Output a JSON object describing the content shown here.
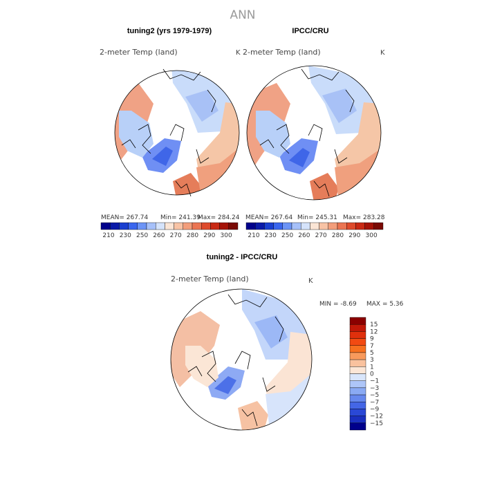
{
  "page": {
    "super_title": "ANN"
  },
  "chart_data": [
    {
      "type": "heatmap",
      "projection": "north-polar-stereographic",
      "title": "tuning2 (yrs 1979-1979)",
      "variable": "2-meter Temp (land)",
      "units": "K",
      "stats": {
        "mean": "MEAN=  267.74",
        "min": "Min=  241.39",
        "max": "Max=  284.24"
      },
      "colorbar": {
        "orientation": "horizontal",
        "levels": [
          "210",
          "230",
          "250",
          "260",
          "270",
          "280",
          "290",
          "300"
        ],
        "colors": [
          "#00008b",
          "#0a1aa8",
          "#1a3fd0",
          "#3a66ee",
          "#6c94f6",
          "#a6c0f9",
          "#d5e3fb",
          "#fbe5d5",
          "#f8c3a5",
          "#f39e7b",
          "#eb7552",
          "#de4b2c",
          "#c92a14",
          "#a51307",
          "#7a0a04"
        ]
      }
    },
    {
      "type": "heatmap",
      "projection": "north-polar-stereographic",
      "title": "IPCC/CRU",
      "variable": "2-meter Temp (land)",
      "units": "K",
      "stats": {
        "mean": "MEAN=  267.64",
        "min": "Min=  245.31",
        "max": "Max=  283.28"
      },
      "colorbar": {
        "orientation": "horizontal",
        "levels": [
          "210",
          "230",
          "250",
          "260",
          "270",
          "280",
          "290",
          "300"
        ],
        "colors": [
          "#00008b",
          "#0a1aa8",
          "#1a3fd0",
          "#3a66ee",
          "#6c94f6",
          "#a6c0f9",
          "#d5e3fb",
          "#fbe5d5",
          "#f8c3a5",
          "#f39e7b",
          "#eb7552",
          "#de4b2c",
          "#c92a14",
          "#a51307",
          "#7a0a04"
        ]
      }
    },
    {
      "type": "heatmap",
      "projection": "north-polar-stereographic",
      "title": "tuning2 - IPCC/CRU",
      "variable": "2-meter Temp (land)",
      "units": "K",
      "stats": {
        "min": "MIN =   -8.69",
        "max": "MAX =    5.36"
      },
      "colorbar": {
        "orientation": "vertical",
        "levels": [
          "15",
          "12",
          "9",
          "7",
          "5",
          "3",
          "1",
          "0",
          "−1",
          "−3",
          "−5",
          "−7",
          "−9",
          "−12",
          "−15"
        ],
        "colors": [
          "#8b0000",
          "#c21808",
          "#e0300c",
          "#f24a12",
          "#f7701f",
          "#f89a5c",
          "#f9c29e",
          "#fbe6d6",
          "#d9e6fb",
          "#aec6f8",
          "#8aaaf4",
          "#6688ee",
          "#4466e6",
          "#2a48d6",
          "#1a2fbf",
          "#00008b"
        ]
      }
    }
  ]
}
